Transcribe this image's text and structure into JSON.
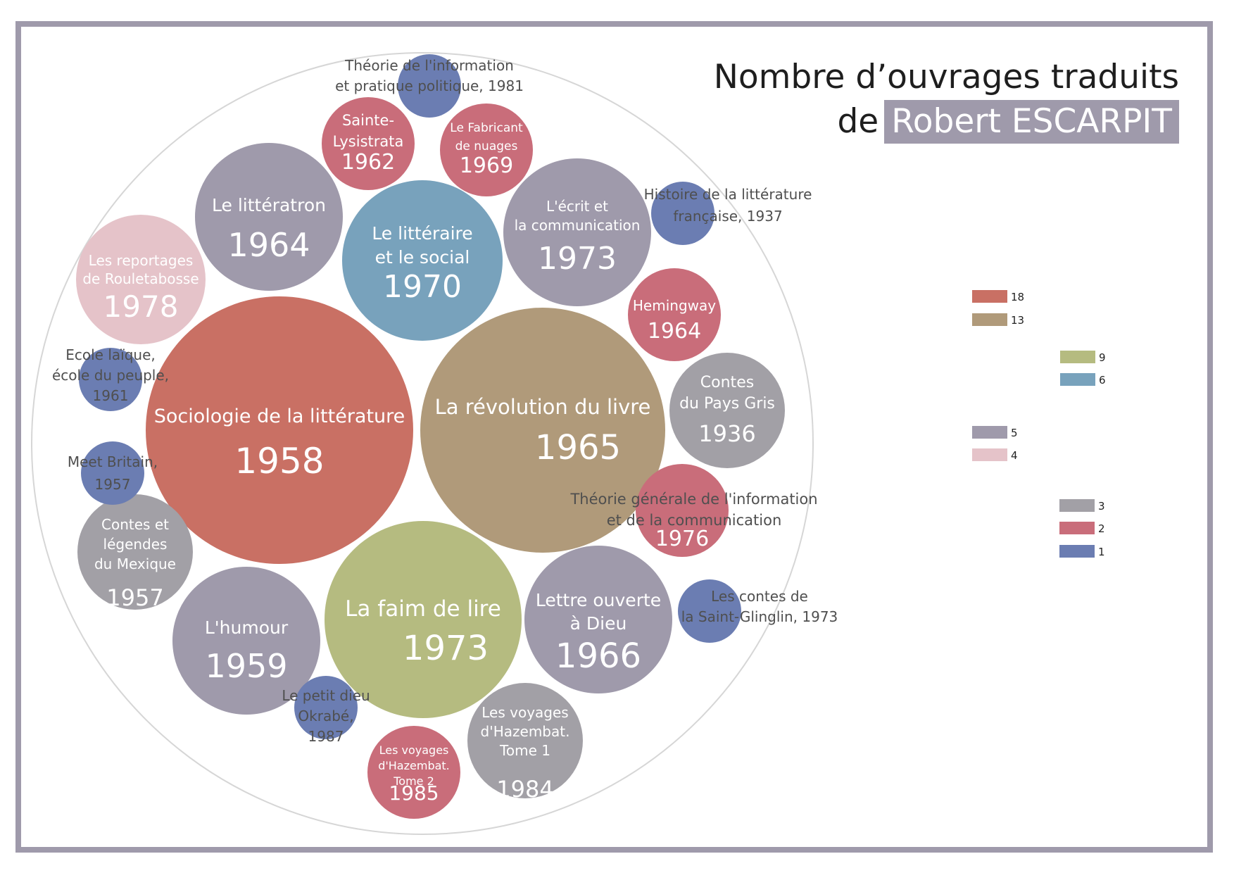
{
  "title": {
    "line1": "Nombre d’ouvrages traduits",
    "line2_prefix": "de",
    "line2_highlight": "Robert ESCARPIT"
  },
  "colors": {
    "frame": "#9f9aab",
    "title_highlight": "#9f9aab",
    "outer_circle": "#d6d6d6",
    "dark_label": "#4f4f4f"
  },
  "chart_data": {
    "type": "bubble",
    "title": "Nombre d’ouvrages traduits de Robert ESCARPIT",
    "legend": {
      "placement": "right",
      "items": [
        {
          "value": 18,
          "color": "#c97064"
        },
        {
          "value": 13,
          "color": "#b09a7a"
        },
        {
          "value": 9,
          "color": "#b5bb80"
        },
        {
          "value": 6,
          "color": "#78a2bc"
        },
        {
          "value": 5,
          "color": "#9f9aab"
        },
        {
          "value": 4,
          "color": "#e5c3c9"
        },
        {
          "value": 3,
          "color": "#a2a0a6"
        },
        {
          "value": 2,
          "color": "#c96d7a"
        },
        {
          "value": 1,
          "color": "#6b7db2"
        }
      ]
    },
    "books": [
      {
        "id": "sociologie",
        "lines": [
          "Sociologie de la littérature"
        ],
        "year": "1958",
        "value": 18
      },
      {
        "id": "revolution",
        "lines": [
          "La révolution du livre"
        ],
        "year": "1965",
        "value": 13
      },
      {
        "id": "faim",
        "lines": [
          "La faim de lire"
        ],
        "year": "1973",
        "value": 9
      },
      {
        "id": "litteraire-social",
        "lines": [
          "Le littéraire",
          "et le social"
        ],
        "year": "1970",
        "value": 6
      },
      {
        "id": "litteratron",
        "lines": [
          "Le littératron"
        ],
        "year": "1964",
        "value": 5
      },
      {
        "id": "ecrit",
        "lines": [
          "L'écrit et",
          "la communication"
        ],
        "year": "1973",
        "value": 5
      },
      {
        "id": "humour",
        "lines": [
          "L'humour"
        ],
        "year": "1959",
        "value": 5
      },
      {
        "id": "lettre",
        "lines": [
          "Lettre ouverte",
          "à Dieu"
        ],
        "year": "1966",
        "value": 5
      },
      {
        "id": "rouletabosse",
        "lines": [
          "Les reportages",
          "de Rouletabosse"
        ],
        "year": "1978",
        "value": 4
      },
      {
        "id": "pays-gris",
        "lines": [
          "Contes",
          "du Pays Gris"
        ],
        "year": "1936",
        "value": 3
      },
      {
        "id": "mexique",
        "lines": [
          "Contes et",
          "légendes",
          "du Mexique"
        ],
        "year": "1957",
        "value": 3
      },
      {
        "id": "hazembat1",
        "lines": [
          "Les voyages",
          "d'Hazembat.",
          "Tome 1"
        ],
        "year": "1984",
        "value": 3
      },
      {
        "id": "lysistrata",
        "lines": [
          "Sainte-",
          "Lysistrata"
        ],
        "year": "1962",
        "value": 2
      },
      {
        "id": "fabricant",
        "lines": [
          "Le Fabricant",
          "de nuages"
        ],
        "year": "1969",
        "value": 2
      },
      {
        "id": "hemingway",
        "lines": [
          "Hemingway"
        ],
        "year": "1964",
        "value": 2
      },
      {
        "id": "theorie-generale",
        "lines": [
          "Théorie générale de l'information",
          "et de la communication"
        ],
        "year": "1976",
        "value": 2
      },
      {
        "id": "hazembat2",
        "lines": [
          "Les voyages",
          "d'Hazembat.",
          "Tome 2"
        ],
        "year": "1985",
        "value": 2
      },
      {
        "id": "theorie-pratique",
        "lines": [
          "Théorie de l'information",
          "et pratique politique, 1981"
        ],
        "year": "",
        "value": 1
      },
      {
        "id": "histoire",
        "lines": [
          "Histoire de la littérature",
          "française, 1937"
        ],
        "year": "",
        "value": 1
      },
      {
        "id": "ecole",
        "lines": [
          "Ecole laïque,",
          "école du peuple,",
          "1961"
        ],
        "year": "",
        "value": 1
      },
      {
        "id": "meet-britain",
        "lines": [
          "Meet Britain,",
          "1957"
        ],
        "year": "",
        "value": 1
      },
      {
        "id": "saint-glinglin",
        "lines": [
          "Les contes de",
          "la Saint-Glinglin, 1973"
        ],
        "year": "",
        "value": 1
      },
      {
        "id": "okrabe",
        "lines": [
          "Le petit dieu",
          "Okrabé,",
          "1987"
        ],
        "year": "",
        "value": 1
      }
    ]
  }
}
